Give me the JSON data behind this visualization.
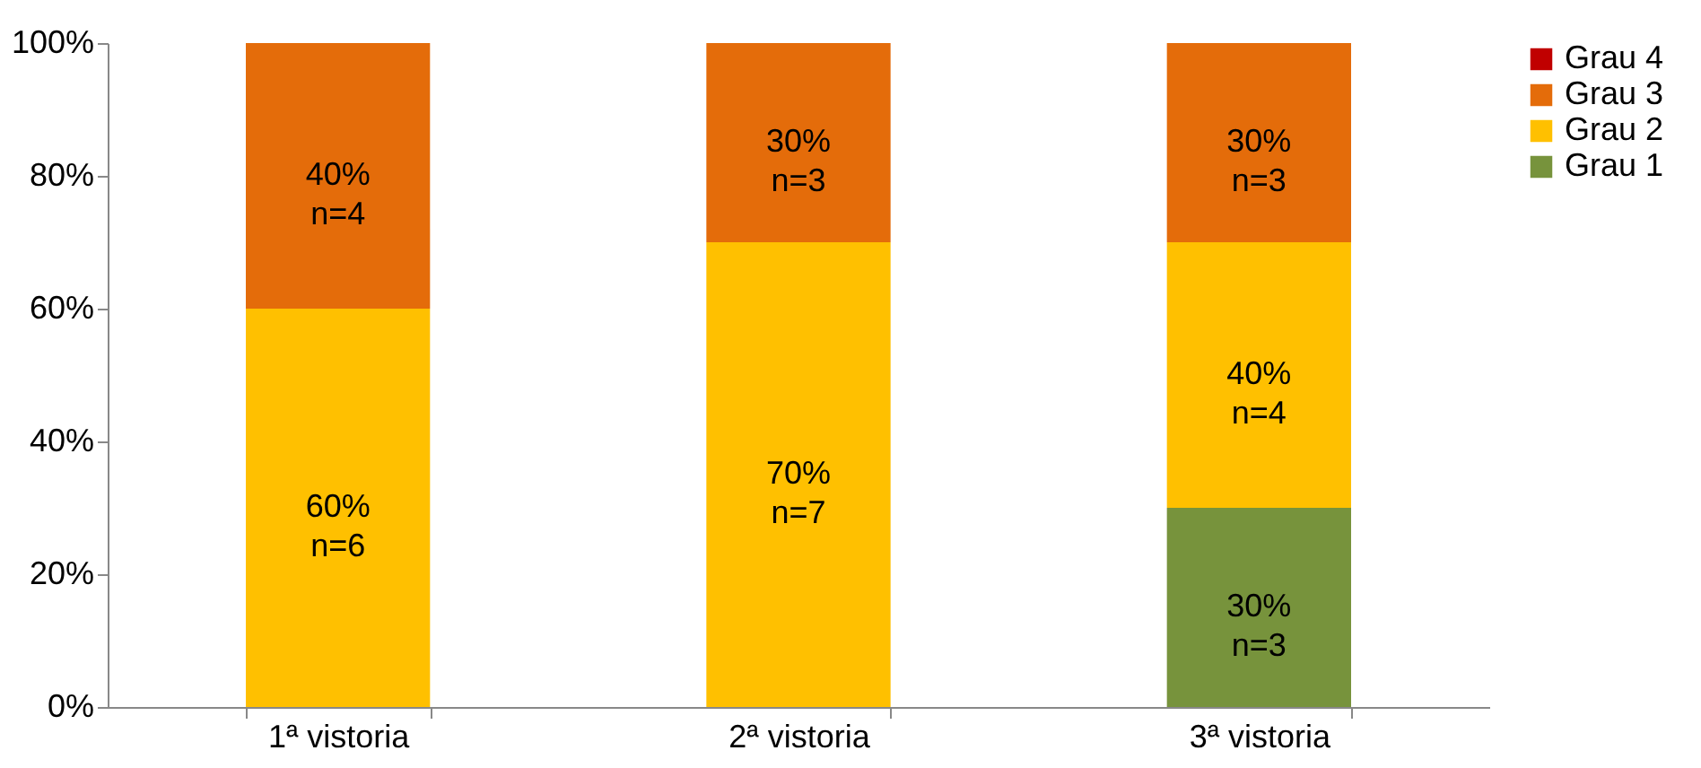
{
  "chart_data": {
    "type": "bar",
    "stacked": true,
    "categories": [
      "1ª vistoria",
      "2ª vistoria",
      "3ª vistoria"
    ],
    "series": [
      {
        "name": "Grau 1",
        "color": "#77933c",
        "values": [
          0,
          0,
          30
        ],
        "value_labels": [
          null,
          null,
          "30%\nn=3"
        ]
      },
      {
        "name": "Grau 2",
        "color": "#ffc000",
        "values": [
          60,
          70,
          40
        ],
        "value_labels": [
          "60%\nn=6",
          "70%\nn=7",
          "40%\nn=4"
        ]
      },
      {
        "name": "Grau 3",
        "color": "#e46c0a",
        "values": [
          40,
          30,
          30
        ],
        "value_labels": [
          "40%\nn=4",
          "30%\nn=3",
          "30%\nn=3"
        ]
      },
      {
        "name": "Grau 4",
        "color": "#c00000",
        "values": [
          0,
          0,
          0
        ],
        "value_labels": [
          null,
          null,
          null
        ]
      }
    ],
    "ylim": [
      0,
      100
    ],
    "yticks": [
      {
        "value": 0,
        "label": "0%"
      },
      {
        "value": 20,
        "label": "20%"
      },
      {
        "value": 40,
        "label": "40%"
      },
      {
        "value": 60,
        "label": "60%"
      },
      {
        "value": 80,
        "label": "80%"
      },
      {
        "value": 100,
        "label": "100%"
      }
    ],
    "grid": false,
    "legend": "right"
  }
}
